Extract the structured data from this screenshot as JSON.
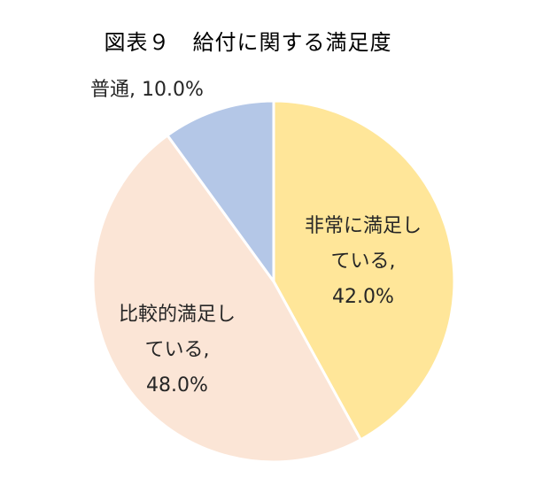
{
  "chart_data": {
    "type": "pie",
    "title": "図表９　給付に関する満足度",
    "slices": [
      {
        "label_lines": [
          "非常に満足し",
          "ている,",
          "42.0%"
        ],
        "value": 42.0,
        "color": "#FFE699"
      },
      {
        "label_lines": [
          "比較的満足し",
          "ている,",
          "48.0%"
        ],
        "value": 48.0,
        "color": "#FBE5D6"
      },
      {
        "label_lines": [
          "普通, 10.0%"
        ],
        "value": 10.0,
        "color": "#B4C7E7"
      }
    ]
  }
}
